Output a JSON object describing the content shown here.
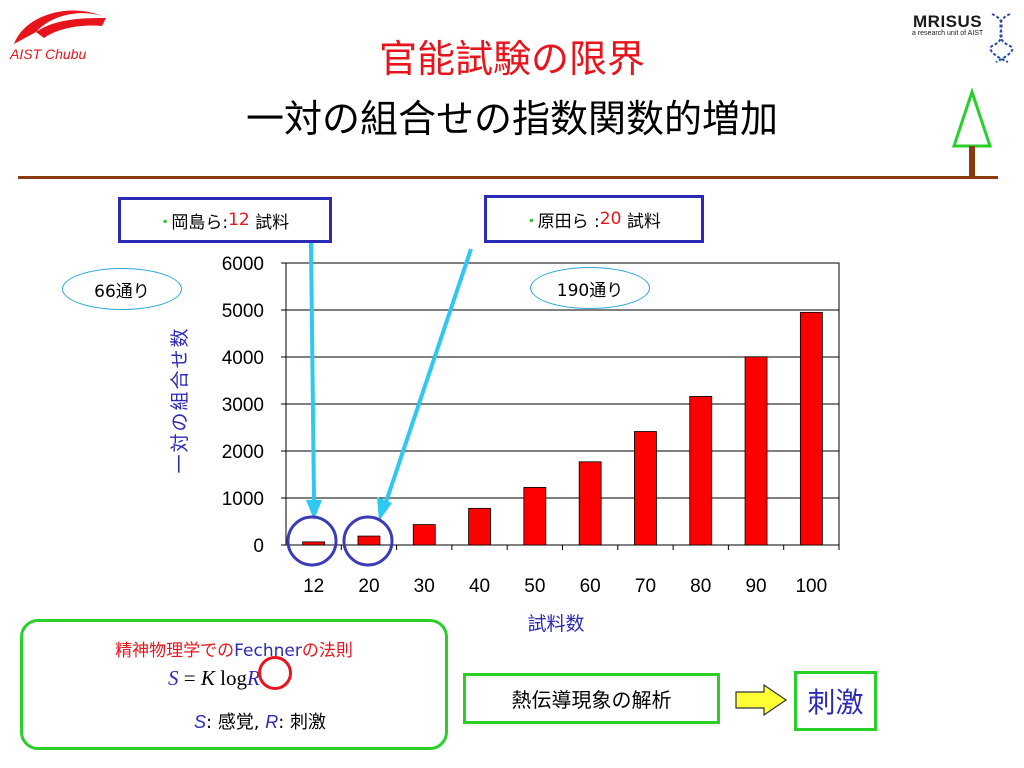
{
  "header": {
    "title": "官能試験の限界",
    "subtitle": "一対の組合せの指数関数的増加",
    "logo_left_text": "AIST Chubu",
    "logo_right_title": "MRISUS",
    "logo_right_sub": "a research unit of AIST"
  },
  "callouts": {
    "okajima_prefix": "岡島ら:",
    "okajima_count": "12",
    "okajima_suffix": " 試料",
    "harada_prefix": "原田ら :",
    "harada_count": "20",
    "harada_suffix": " 試料",
    "bullet": "･",
    "left_ellipse": "66通り",
    "right_ellipse": "190通り"
  },
  "chart_data": {
    "type": "bar",
    "categories": [
      "12",
      "20",
      "30",
      "40",
      "50",
      "60",
      "70",
      "80",
      "90",
      "100"
    ],
    "values": [
      66,
      190,
      435,
      780,
      1225,
      1770,
      2415,
      3160,
      4005,
      4950
    ],
    "xlabel": "試料数",
    "ylabel": "一対の組合せ数",
    "ylim": [
      0,
      6000
    ],
    "yticks": [
      "0",
      "1000",
      "2000",
      "3000",
      "4000",
      "5000",
      "6000"
    ],
    "bar_color": "#ff0000",
    "grid": true
  },
  "formula": {
    "title_red": "精神物理学での",
    "title_blue": "Fechner",
    "title_red2": "の法則",
    "S": "S",
    "eq": " = ",
    "K": "K",
    "log": " log",
    "R": "R",
    "legend_S": "S",
    "legend_S_text": ": 感覚, ",
    "legend_R": "R",
    "legend_R_text": ": 刺激"
  },
  "flow": {
    "heat_label": "熱伝導現象の解析",
    "stim_label": "刺激"
  },
  "colors": {
    "title_red": "#e8141c",
    "accent_blue": "#2b2bb6",
    "arrow_cyan": "#2ec8f0",
    "green": "#2ad02a",
    "rule_brown": "#8b3a0e"
  }
}
